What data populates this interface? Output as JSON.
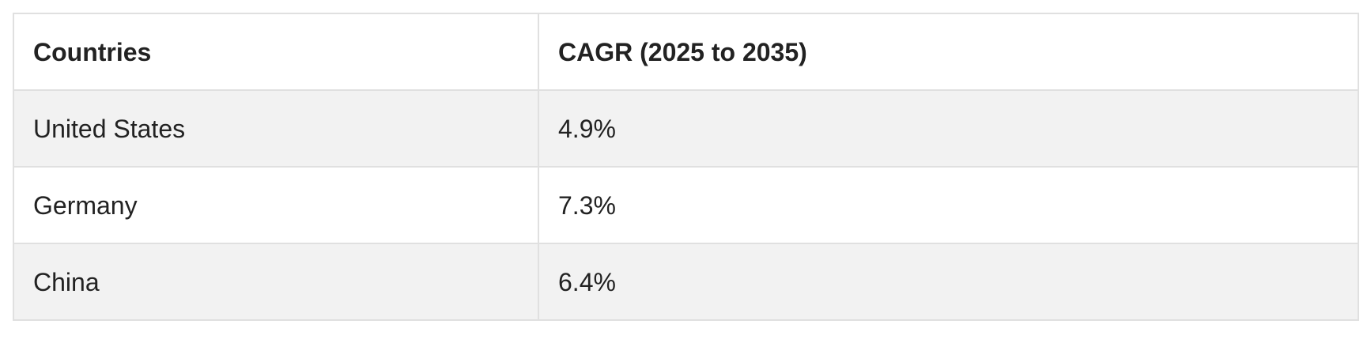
{
  "table": {
    "headers": [
      "Countries",
      "CAGR (2025 to 2035)"
    ],
    "rows": [
      [
        "United States",
        "4.9%"
      ],
      [
        "Germany",
        "7.3%"
      ],
      [
        "China",
        "6.4%"
      ]
    ]
  },
  "colors": {
    "border": "#e0e0e0",
    "stripe": "#f2f2f2",
    "text": "#222222",
    "background": "#ffffff"
  }
}
